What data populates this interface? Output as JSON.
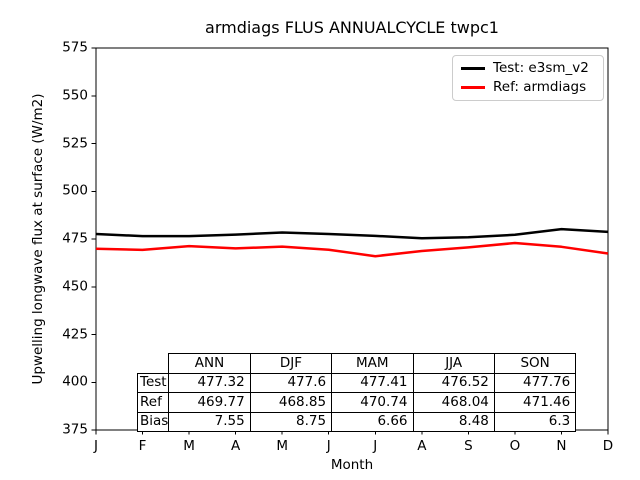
{
  "chart": {
    "title": "armdiags FLUS ANNUALCYCLE twpc1",
    "xlabel": "Month",
    "ylabel": "Upwelling longwave flux at surface (W/m2)"
  },
  "chart_data": {
    "type": "line",
    "title": "armdiags FLUS ANNUALCYCLE twpc1",
    "xlabel": "Month",
    "ylabel": "Upwelling longwave flux at surface (W/m2)",
    "x_tick_labels": [
      "J",
      "F",
      "M",
      "A",
      "M",
      "J",
      "J",
      "A",
      "S",
      "O",
      "N",
      "D"
    ],
    "y_ticks": [
      375,
      400,
      425,
      450,
      475,
      500,
      525,
      550,
      575
    ],
    "ylim": [
      375,
      575
    ],
    "grid": false,
    "legend_position": "upper right",
    "series": [
      {
        "name": "Test: e3sm_v2",
        "color": "#000000",
        "values": [
          477.6,
          476.5,
          476.5,
          477.3,
          478.4,
          477.6,
          476.6,
          475.4,
          475.9,
          477.2,
          480.2,
          478.7
        ]
      },
      {
        "name": "Ref: armdiags",
        "color": "#ff0000",
        "values": [
          469.9,
          469.3,
          471.3,
          470.1,
          471.0,
          469.4,
          466.0,
          468.7,
          470.6,
          472.9,
          470.9,
          467.4
        ]
      }
    ],
    "table": {
      "col_headers": [
        "ANN",
        "DJF",
        "MAM",
        "JJA",
        "SON"
      ],
      "rows": [
        {
          "label": "Test",
          "values": [
            "477.32",
            "477.6",
            "477.41",
            "476.52",
            "477.76"
          ]
        },
        {
          "label": "Ref",
          "values": [
            "469.77",
            "468.85",
            "470.74",
            "468.04",
            "471.46"
          ]
        },
        {
          "label": "Bias",
          "values": [
            "7.55",
            "8.75",
            "6.66",
            "8.48",
            "6.3"
          ]
        }
      ]
    }
  }
}
